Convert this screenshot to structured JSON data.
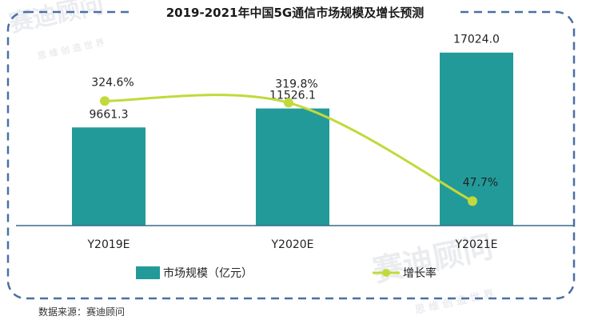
{
  "chart_data": {
    "type": "bar",
    "title": "2019-2021年中国5G通信市场规模及增长预测",
    "categories": [
      "Y2019E",
      "Y2020E",
      "Y2021E"
    ],
    "series": [
      {
        "name": "市场规模（亿元）",
        "type": "bar",
        "values": [
          9661.3,
          11526.1,
          17024.0
        ],
        "labels": [
          "9661.3",
          "11526.1",
          "17024.0"
        ],
        "color": "#239a9a",
        "ylim": [
          0,
          18500
        ]
      },
      {
        "name": "增长率",
        "type": "line",
        "values": [
          324.6,
          319.8,
          47.7
        ],
        "labels": [
          "324.6%",
          "319.8%",
          "47.7%"
        ],
        "color": "#c3d93a",
        "ylim": [
          -20,
          500
        ]
      }
    ],
    "legend_position": "bottom",
    "grid": false
  },
  "source": "数据来源：赛迪顾问",
  "watermark": {
    "brand": "赛迪顾问",
    "slogan": "思 维 创 造 世 界"
  },
  "colors": {
    "frame": "#4a6fa5",
    "axis": "#3a6a8a"
  }
}
